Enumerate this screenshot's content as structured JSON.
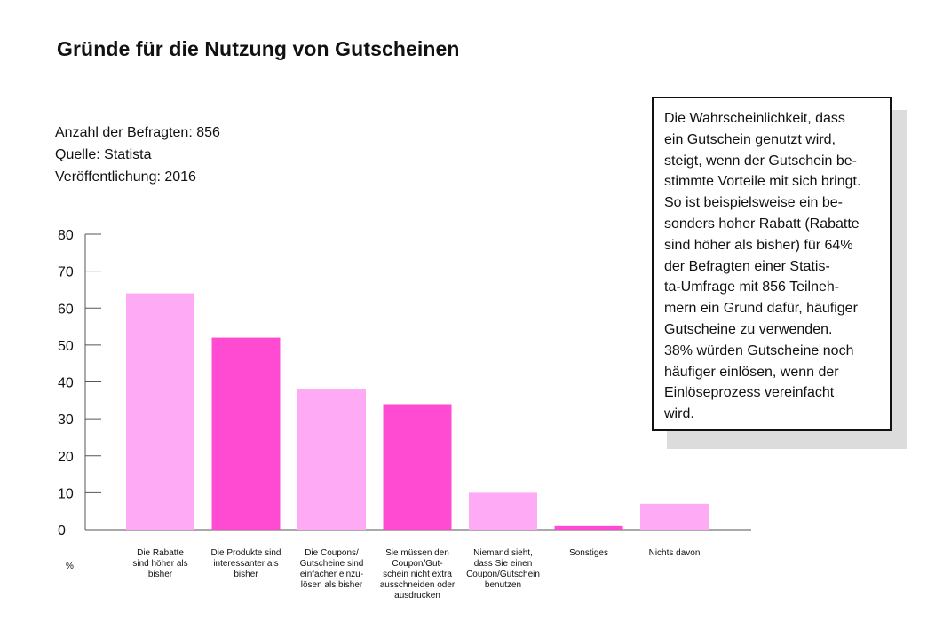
{
  "title": "Gründe für die Nutzung von Gutscheinen",
  "meta": {
    "respondents": "Anzahl der Befragten: 856",
    "source": "Quelle: Statista",
    "published": "Veröffentlichung: 2016"
  },
  "note_lines": [
    "Die Wahrscheinlichkeit, dass",
    "ein Gutschein genutzt wird,",
    "steigt, wenn der Gutschein be-",
    "stimmte Vorteile mit sich bringt.",
    "So ist beispielsweise ein be-",
    "sonders hoher Rabatt (Rabatte",
    "sind höher als bisher) für 64%",
    "der Befragten einer Statis-",
    "ta-Umfrage mit 856 Teilneh-",
    "mern ein Grund dafür, häufiger",
    "Gutscheine zu verwenden.",
    "38% würden Gutscheine noch",
    "häufiger einlösen, wenn der",
    "Einlöseprozess vereinfacht",
    "wird."
  ],
  "chart_data": {
    "type": "bar",
    "title": "Gründe für die Nutzung von Gutscheinen",
    "ylabel": "%",
    "xlabel": "",
    "ylim": [
      0,
      80
    ],
    "yticks": [
      0,
      10,
      20,
      30,
      40,
      50,
      60,
      70,
      80
    ],
    "grid": false,
    "categories": [
      [
        "Die Rabatte",
        "sind höher als",
        "bisher"
      ],
      [
        "Die Produkte sind",
        "interessanter als",
        "bisher"
      ],
      [
        "Die Coupons/",
        "Gutscheine sind",
        "einfacher einzu-",
        "lösen als bisher"
      ],
      [
        "Sie müssen den",
        "Coupon/Gut-",
        "schein nicht extra",
        "ausschneiden oder",
        "ausdrucken"
      ],
      [
        "Niemand sieht,",
        "dass Sie einen",
        "Coupon/Gutschein",
        "benutzen"
      ],
      [
        "Sonstiges"
      ],
      [
        "Nichts davon"
      ]
    ],
    "values": [
      64,
      52,
      38,
      34,
      10,
      1,
      7
    ],
    "colors": [
      "#ffaaf5",
      "#ff4bd2",
      "#ffaaf5",
      "#ff4bd2",
      "#ffaaf5",
      "#ff4bd2",
      "#ffaaf5"
    ]
  }
}
